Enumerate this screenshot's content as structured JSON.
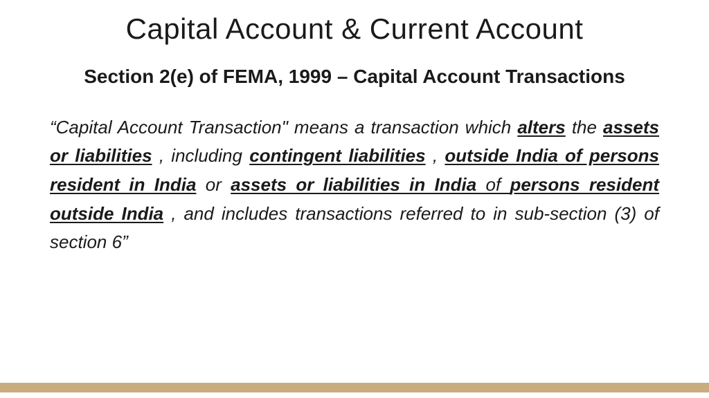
{
  "colors": {
    "background": "#ffffff",
    "text": "#1a1a1a",
    "footer_bar": "#c9ad7f"
  },
  "typography": {
    "title_font": "Arial Narrow / condensed sans",
    "title_size_pt": 32,
    "subtitle_font": "Segoe UI / sans-serif bold",
    "subtitle_size_pt": 21,
    "body_font": "Segoe UI / sans-serif italic",
    "body_size_pt": 20,
    "body_align": "justify"
  },
  "title": "Capital Account & Current Account",
  "subtitle": "Section 2(e) of FEMA, 1999 – Capital Account Transactions",
  "body": {
    "p1": "“Capital Account Transaction\" means a transaction which ",
    "s_alters": "alters",
    "p2": " the ",
    "s_assets": "assets or liabilities",
    "p3": ", including ",
    "s_contingent": "contingent liabilities",
    "p4": ", ",
    "s_outside": "outside India of persons resident in India",
    "p5": " or ",
    "s_ail_india": "assets or liabilities in India ",
    "p6": "of ",
    "s_pro_india": "persons resident outside India",
    "p7": ", and includes transactions referred to in sub-section (3) of section 6”"
  }
}
